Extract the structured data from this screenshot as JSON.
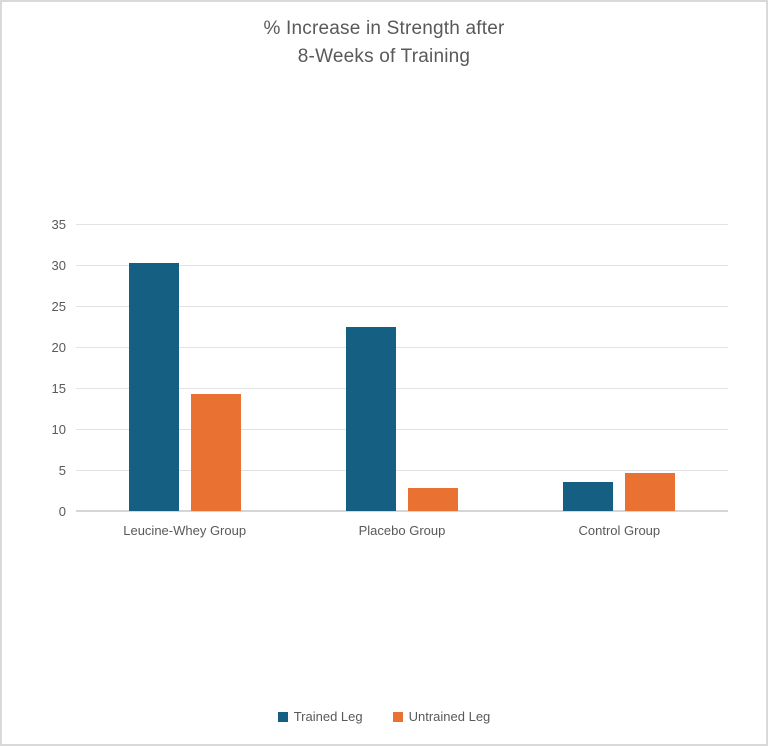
{
  "colors": {
    "trained_leg": "#156082",
    "untrained_leg": "#E97132",
    "text": "#595959",
    "gridline": "#e2e2e2",
    "axis_line": "#d6d6d6",
    "frame_border": "#d9d9d9",
    "background": "#ffffff"
  },
  "chart_data": {
    "type": "bar",
    "title": "% Increase in Strength after 8-Weeks of Training",
    "title_lines": [
      "% Increase in Strength after",
      "8-Weeks of Training"
    ],
    "xlabel": "",
    "ylabel": "",
    "categories": [
      "Leucine-Whey Group",
      "Placebo Group",
      "Control Group"
    ],
    "series": [
      {
        "name": "Trained Leg",
        "color": "#156082",
        "values": [
          30.3,
          22.4,
          3.5
        ]
      },
      {
        "name": "Untrained Leg",
        "color": "#E97132",
        "values": [
          14.3,
          2.8,
          4.6
        ]
      }
    ],
    "ylim": [
      0,
      35
    ],
    "yticks": [
      0,
      5,
      10,
      15,
      20,
      25,
      30,
      35
    ],
    "grid": "horizontal",
    "legend_position": "bottom-center"
  }
}
